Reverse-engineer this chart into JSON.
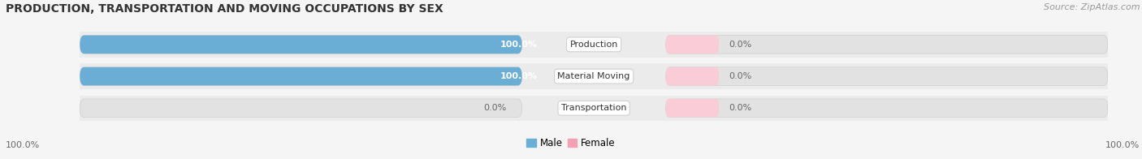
{
  "title": "PRODUCTION, TRANSPORTATION AND MOVING OCCUPATIONS BY SEX",
  "source": "Source: ZipAtlas.com",
  "categories": [
    "Production",
    "Material Moving",
    "Transportation"
  ],
  "male_values": [
    100.0,
    100.0,
    0.0
  ],
  "female_values": [
    0.0,
    0.0,
    0.0
  ],
  "male_color": "#6aaed6",
  "female_color": "#f4a0b5",
  "male_color_light": "#b8d8ee",
  "female_color_light": "#f9ccd8",
  "track_color": "#e2e2e2",
  "bg_color": "#f5f5f5",
  "bar_bg_color": "#ebebeb",
  "title_fontsize": 10,
  "source_fontsize": 8,
  "bar_label_fontsize": 8,
  "category_fontsize": 8,
  "legend_fontsize": 8.5,
  "axis_label_fontsize": 8,
  "x_left_label": "100.0%",
  "x_right_label": "100.0%"
}
